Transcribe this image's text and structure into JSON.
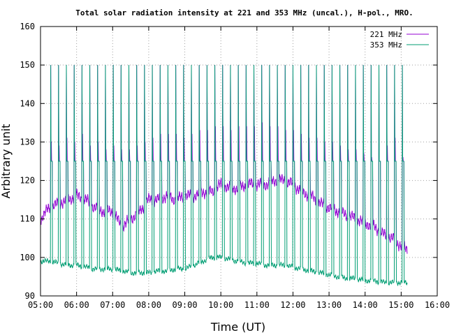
{
  "chart_data": {
    "type": "line",
    "title": "Total solar radiation intensity at 221 and 353 MHz (uncal.), H-pol., MRO.",
    "xlabel": "Time (UT)",
    "ylabel": "Arbitrary unit",
    "xlim": [
      "05:00",
      "16:00"
    ],
    "ylim": [
      90,
      160
    ],
    "x_ticks": [
      "05:00",
      "06:00",
      "07:00",
      "08:00",
      "09:00",
      "10:00",
      "11:00",
      "12:00",
      "13:00",
      "14:00",
      "15:00",
      "16:00"
    ],
    "y_ticks": [
      90,
      100,
      110,
      120,
      130,
      140,
      150,
      160
    ],
    "grid": true,
    "legend_position": "top-right",
    "series": [
      {
        "name": "221 MHz",
        "color": "#9400d3",
        "x": [
          "05:00",
          "05:15",
          "05:30",
          "05:45",
          "06:00",
          "06:15",
          "06:30",
          "06:45",
          "07:00",
          "07:15",
          "07:30",
          "07:45",
          "08:00",
          "08:15",
          "08:30",
          "08:45",
          "09:00",
          "09:15",
          "09:30",
          "09:45",
          "10:00",
          "10:15",
          "10:30",
          "10:45",
          "11:00",
          "11:15",
          "11:30",
          "11:45",
          "12:00",
          "12:15",
          "12:30",
          "12:45",
          "13:00",
          "13:15",
          "13:30",
          "13:45",
          "14:00",
          "14:15",
          "14:30",
          "14:45",
          "15:00",
          "15:10"
        ],
        "y": [
          110,
          113,
          114,
          115,
          116,
          115,
          113,
          112,
          112,
          108,
          110,
          112,
          115,
          115,
          116,
          115,
          116,
          116,
          117,
          117,
          119,
          118,
          118,
          119,
          119,
          119,
          120,
          120,
          119,
          117,
          116,
          114,
          113,
          112,
          111,
          110,
          109,
          108,
          106,
          105,
          103,
          102
        ]
      },
      {
        "name": "353 MHz",
        "color": "#009e73",
        "x": [
          "05:00",
          "05:15",
          "05:30",
          "05:45",
          "06:00",
          "06:15",
          "06:30",
          "06:45",
          "07:00",
          "07:15",
          "07:30",
          "07:45",
          "08:00",
          "08:15",
          "08:30",
          "08:45",
          "09:00",
          "09:15",
          "09:30",
          "09:45",
          "10:00",
          "10:15",
          "10:30",
          "10:45",
          "11:00",
          "11:15",
          "11:30",
          "11:45",
          "12:00",
          "12:15",
          "12:30",
          "12:45",
          "13:00",
          "13:15",
          "13:30",
          "13:45",
          "14:00",
          "14:15",
          "14:30",
          "14:45",
          "15:00",
          "15:10"
        ],
        "y": [
          99,
          99,
          98.5,
          98,
          98,
          97.5,
          97,
          97,
          97,
          96.5,
          96,
          96,
          96,
          96.5,
          96.5,
          97,
          97,
          98,
          99,
          100,
          100,
          99.5,
          99,
          98.5,
          98.5,
          98,
          98,
          98,
          97.5,
          97,
          96.5,
          96,
          95.5,
          95,
          94.5,
          94.5,
          94,
          94,
          93.5,
          93.5,
          93.5,
          93.5
        ]
      }
    ],
    "calibration_spikes": {
      "times": [
        "05:17",
        "05:30",
        "05:43",
        "05:56",
        "06:09",
        "06:22",
        "06:35",
        "06:48",
        "07:01",
        "07:14",
        "07:27",
        "07:40",
        "07:53",
        "08:06",
        "08:19",
        "08:32",
        "08:45",
        "08:58",
        "09:11",
        "09:24",
        "09:37",
        "09:50",
        "10:03",
        "10:16",
        "10:29",
        "10:42",
        "10:55",
        "11:08",
        "11:21",
        "11:34",
        "11:47",
        "12:00",
        "12:13",
        "12:26",
        "12:39",
        "12:52",
        "13:05",
        "13:18",
        "13:31",
        "13:44",
        "13:57",
        "14:10",
        "14:23",
        "14:36",
        "14:49",
        "15:02"
      ],
      "high_level": 150,
      "step_level": 125,
      "step_peak_221": [
        130,
        129,
        131,
        130,
        132,
        129,
        130,
        128,
        129,
        128,
        128,
        129,
        130,
        131,
        132,
        132,
        132,
        131,
        132,
        133,
        133,
        134,
        134,
        133,
        134,
        134,
        134,
        135,
        134,
        134,
        133,
        133,
        132,
        131,
        131,
        130,
        130,
        129,
        128,
        128,
        127,
        126,
        125,
        129,
        131,
        126
      ]
    }
  }
}
